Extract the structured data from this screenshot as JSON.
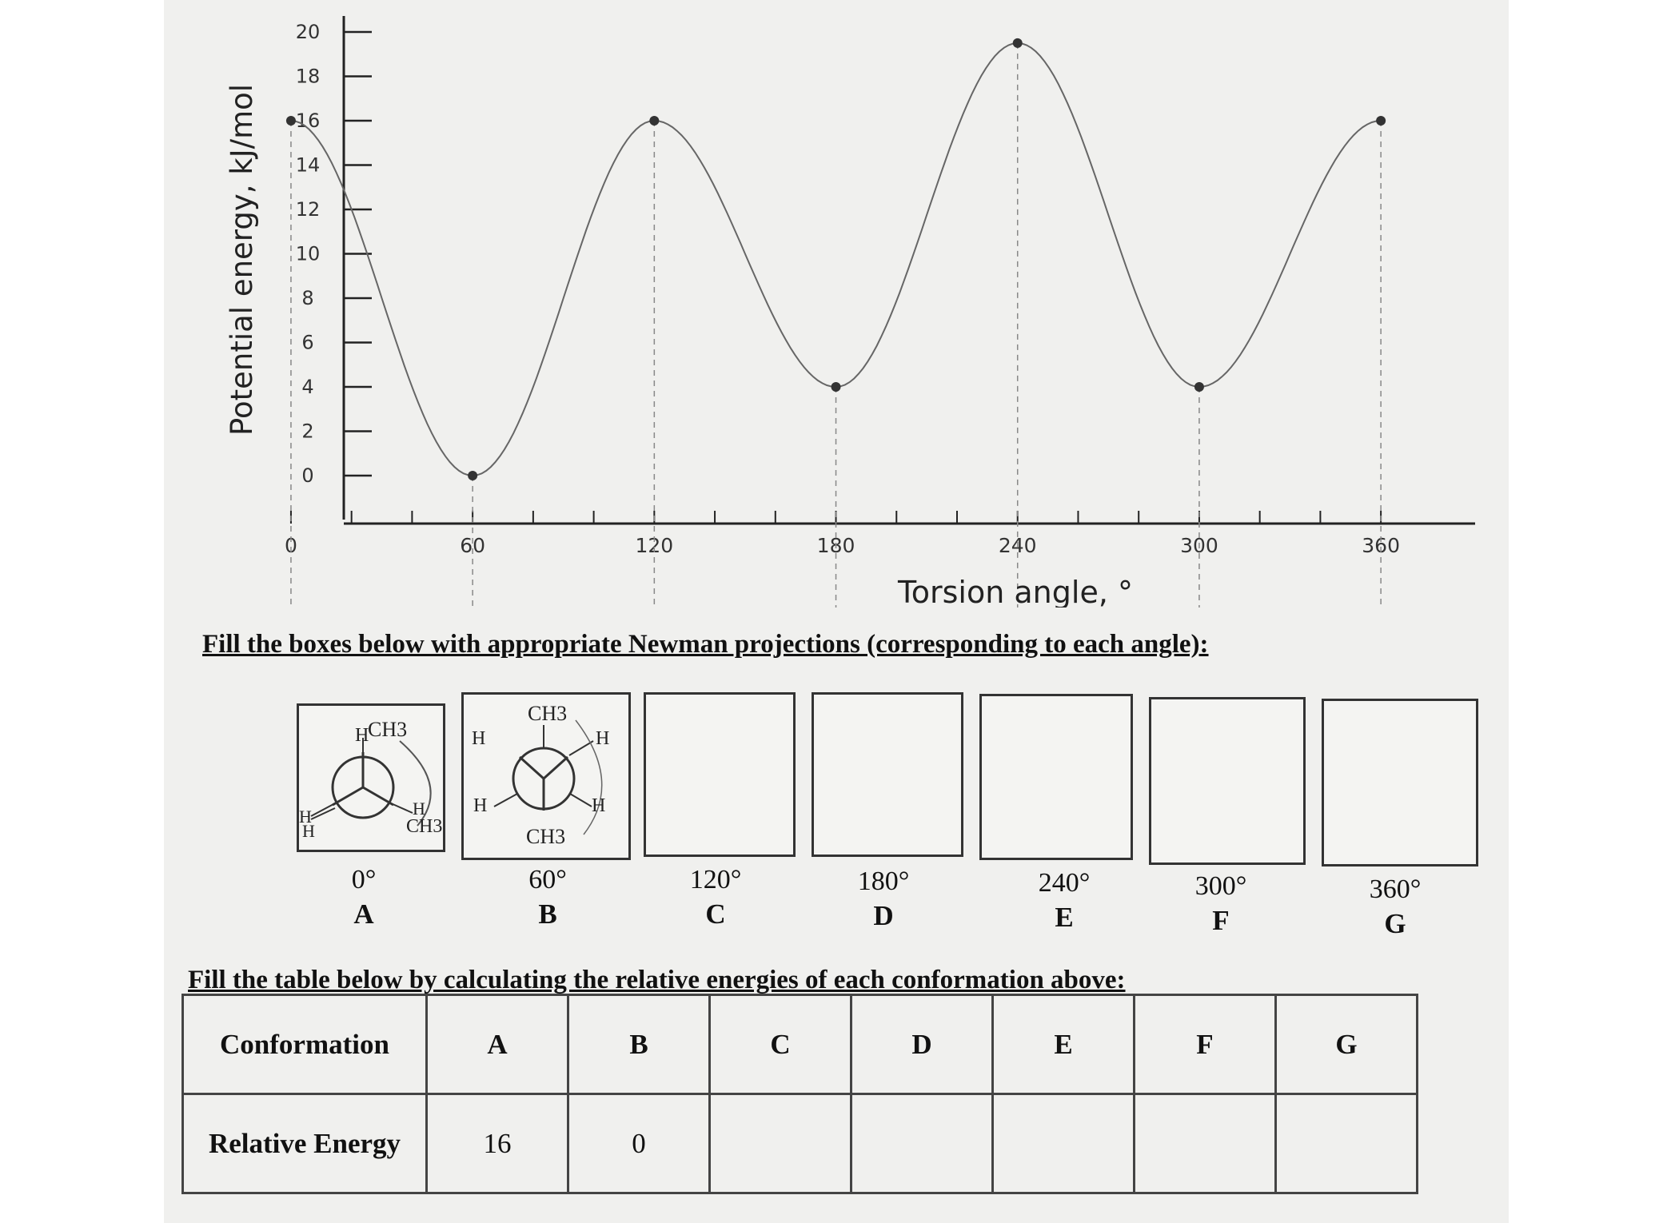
{
  "chart_data": {
    "type": "line",
    "xlabel": "Torsion angle, °",
    "ylabel": "Potential energy, kJ/mol",
    "xlim": [
      -5,
      370
    ],
    "ylim": [
      0,
      20
    ],
    "xticks": [
      0,
      60,
      120,
      180,
      240,
      300,
      360
    ],
    "yticks": [
      0,
      2,
      4,
      6,
      8,
      10,
      12,
      14,
      16,
      18,
      20
    ],
    "points": [
      {
        "x": 0,
        "y": 16
      },
      {
        "x": 60,
        "y": 0
      },
      {
        "x": 120,
        "y": 16
      },
      {
        "x": 180,
        "y": 4
      },
      {
        "x": 240,
        "y": 19.5
      },
      {
        "x": 300,
        "y": 4
      },
      {
        "x": 360,
        "y": 16
      }
    ],
    "grid": false
  },
  "instructions": {
    "newman": "Fill the boxes below with appropriate Newman projections (corresponding to each angle):",
    "table": "Fill the table below by calculating the relative energies of each conformation above:"
  },
  "conformations": [
    {
      "angle": "0°",
      "letter": "A"
    },
    {
      "angle": "60°",
      "letter": "B"
    },
    {
      "angle": "120°",
      "letter": "C"
    },
    {
      "angle": "180°",
      "letter": "D"
    },
    {
      "angle": "240°",
      "letter": "E"
    },
    {
      "angle": "300°",
      "letter": "F"
    },
    {
      "angle": "360°",
      "letter": "G"
    }
  ],
  "newman_labels": {
    "a_top": "CH3",
    "a_top_h": "H",
    "a_left_1": "H",
    "a_left_2": "H",
    "a_right_h": "H",
    "a_right_ch3": "CH3",
    "b_top": "CH3",
    "b_upper_left": "H",
    "b_upper_right": "H",
    "b_lower_left": "H",
    "b_lower_right": "H",
    "b_bottom": "CH3"
  },
  "table": {
    "header_label": "Conformation",
    "row_label": "Relative Energy",
    "columns": [
      "A",
      "B",
      "C",
      "D",
      "E",
      "F",
      "G"
    ],
    "values": [
      "16",
      "0",
      "",
      "",
      "",
      "",
      ""
    ]
  }
}
